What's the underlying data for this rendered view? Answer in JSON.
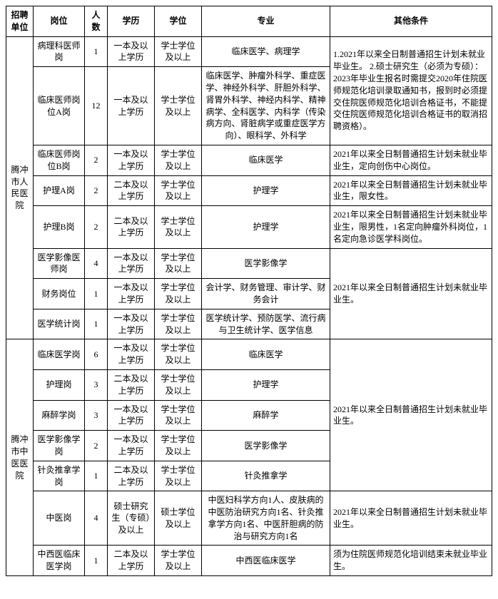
{
  "headers": [
    "招聘单位",
    "岗位",
    "人数",
    "学历",
    "学位",
    "专业",
    "其他条件"
  ],
  "unit1": "腾冲市人民医院",
  "unit2": "腾冲市中医医院",
  "rows": [
    {
      "post": "病理科医师岗",
      "count": "1",
      "edu": "一本及以上学历",
      "degree": "学士学位及以上",
      "major": "临床医学、病理学",
      "other": "1.2021年以来全日制普通招生计划未就业毕业生。\n2.硕士研究生（必须为专硕）：2023年毕业生报名时需提交2020年住院医师规范化培训录取通知书，报到时必须提交住院医师规范化培训合格证书，不能提交住院医师规范化培训合格证书的取消招聘资格）。"
    },
    {
      "post": "临床医师岗位A岗",
      "count": "12",
      "edu": "一本及以上学历",
      "degree": "学士学位及以上",
      "major": "临床医学、肿瘤外科学、重症医学、神经外科学、肝胆外科学、肾胃外科学、神经内科学、精神病学、全科医学、内科学（传染病方向、肾脏病学或重症医学方向）、眼科学、外科学"
    },
    {
      "post": "临床医师岗位B岗",
      "count": "2",
      "edu": "一本及以上学历",
      "degree": "学士学位及以上",
      "major": "临床医学",
      "other": "2021年以来全日制普通招生计划未就业毕业生，定向创伤中心岗位。"
    },
    {
      "post": "护理A岗",
      "count": "2",
      "edu": "二本及以上学历",
      "degree": "学士学位及以上",
      "major": "护理学",
      "other": "2021年以来全日制普通招生计划未就业毕业生，限女性。"
    },
    {
      "post": "护理B岗",
      "count": "2",
      "edu": "二本及以上学历",
      "degree": "学士学位及以上",
      "major": "护理学",
      "other": "2021年以来全日制普通招生计划未就业毕业生，限男性，1名定向肿瘤外科岗位，1名定向急诊医学科岗位。"
    },
    {
      "post": "医学影像医师岗",
      "count": "4",
      "edu": "一本及以上学历",
      "degree": "学士学位及以上",
      "major": "医学影像学",
      "other": "2021年以来全日制普通招生计划未就业毕业生。"
    },
    {
      "post": "财务岗位",
      "count": "1",
      "edu": "一本及以上学历",
      "degree": "学士学位及以上",
      "major": "会计学、财务管理、审计学、财务会计"
    },
    {
      "post": "医学统计岗",
      "count": "1",
      "edu": "一本及以上学历",
      "degree": "学士学位及以上",
      "major": "医学统计学、预防医学、流行病与卫生统计学、医学信息"
    },
    {
      "post": "临床医学岗",
      "count": "6",
      "edu": "一本及以上学历",
      "degree": "学士学位及以上",
      "major": "临床医学",
      "other": "2021年以来全日制普通招生计划未就业毕业生。"
    },
    {
      "post": "护理岗",
      "count": "3",
      "edu": "二本及以上学历",
      "degree": "学士学位及以上",
      "major": "护理学"
    },
    {
      "post": "麻醉学岗",
      "count": "3",
      "edu": "一本及以上学历",
      "degree": "学士学位及以上",
      "major": "麻醉学"
    },
    {
      "post": "医学影像学岗",
      "count": "2",
      "edu": "一本及以上学历",
      "degree": "学士学位及以上",
      "major": "医学影像学"
    },
    {
      "post": "针灸推拿学岗",
      "count": "1",
      "edu": "二本及以上学历",
      "degree": "学士学位及以上",
      "major": "针灸推拿学"
    },
    {
      "post": "中医岗",
      "count": "4",
      "edu": "硕士研究生（专硕）及以上",
      "degree": "硕士学位及以上",
      "major": "中医妇科学方向1人、皮肤病的中医防治研究方向1名、针灸推拿学方向1名、中医肝胆病的防治与研究方向1名",
      "other": "2021年以来全日制普通招生计划未就业毕业生。"
    },
    {
      "post": "中西医临床医学岗",
      "count": "1",
      "edu": "二本及以上学历",
      "degree": "学士学位及以上",
      "major": "中西医临床医学",
      "other": "须为住院医师规范化培训结束未就业毕业生。"
    }
  ]
}
